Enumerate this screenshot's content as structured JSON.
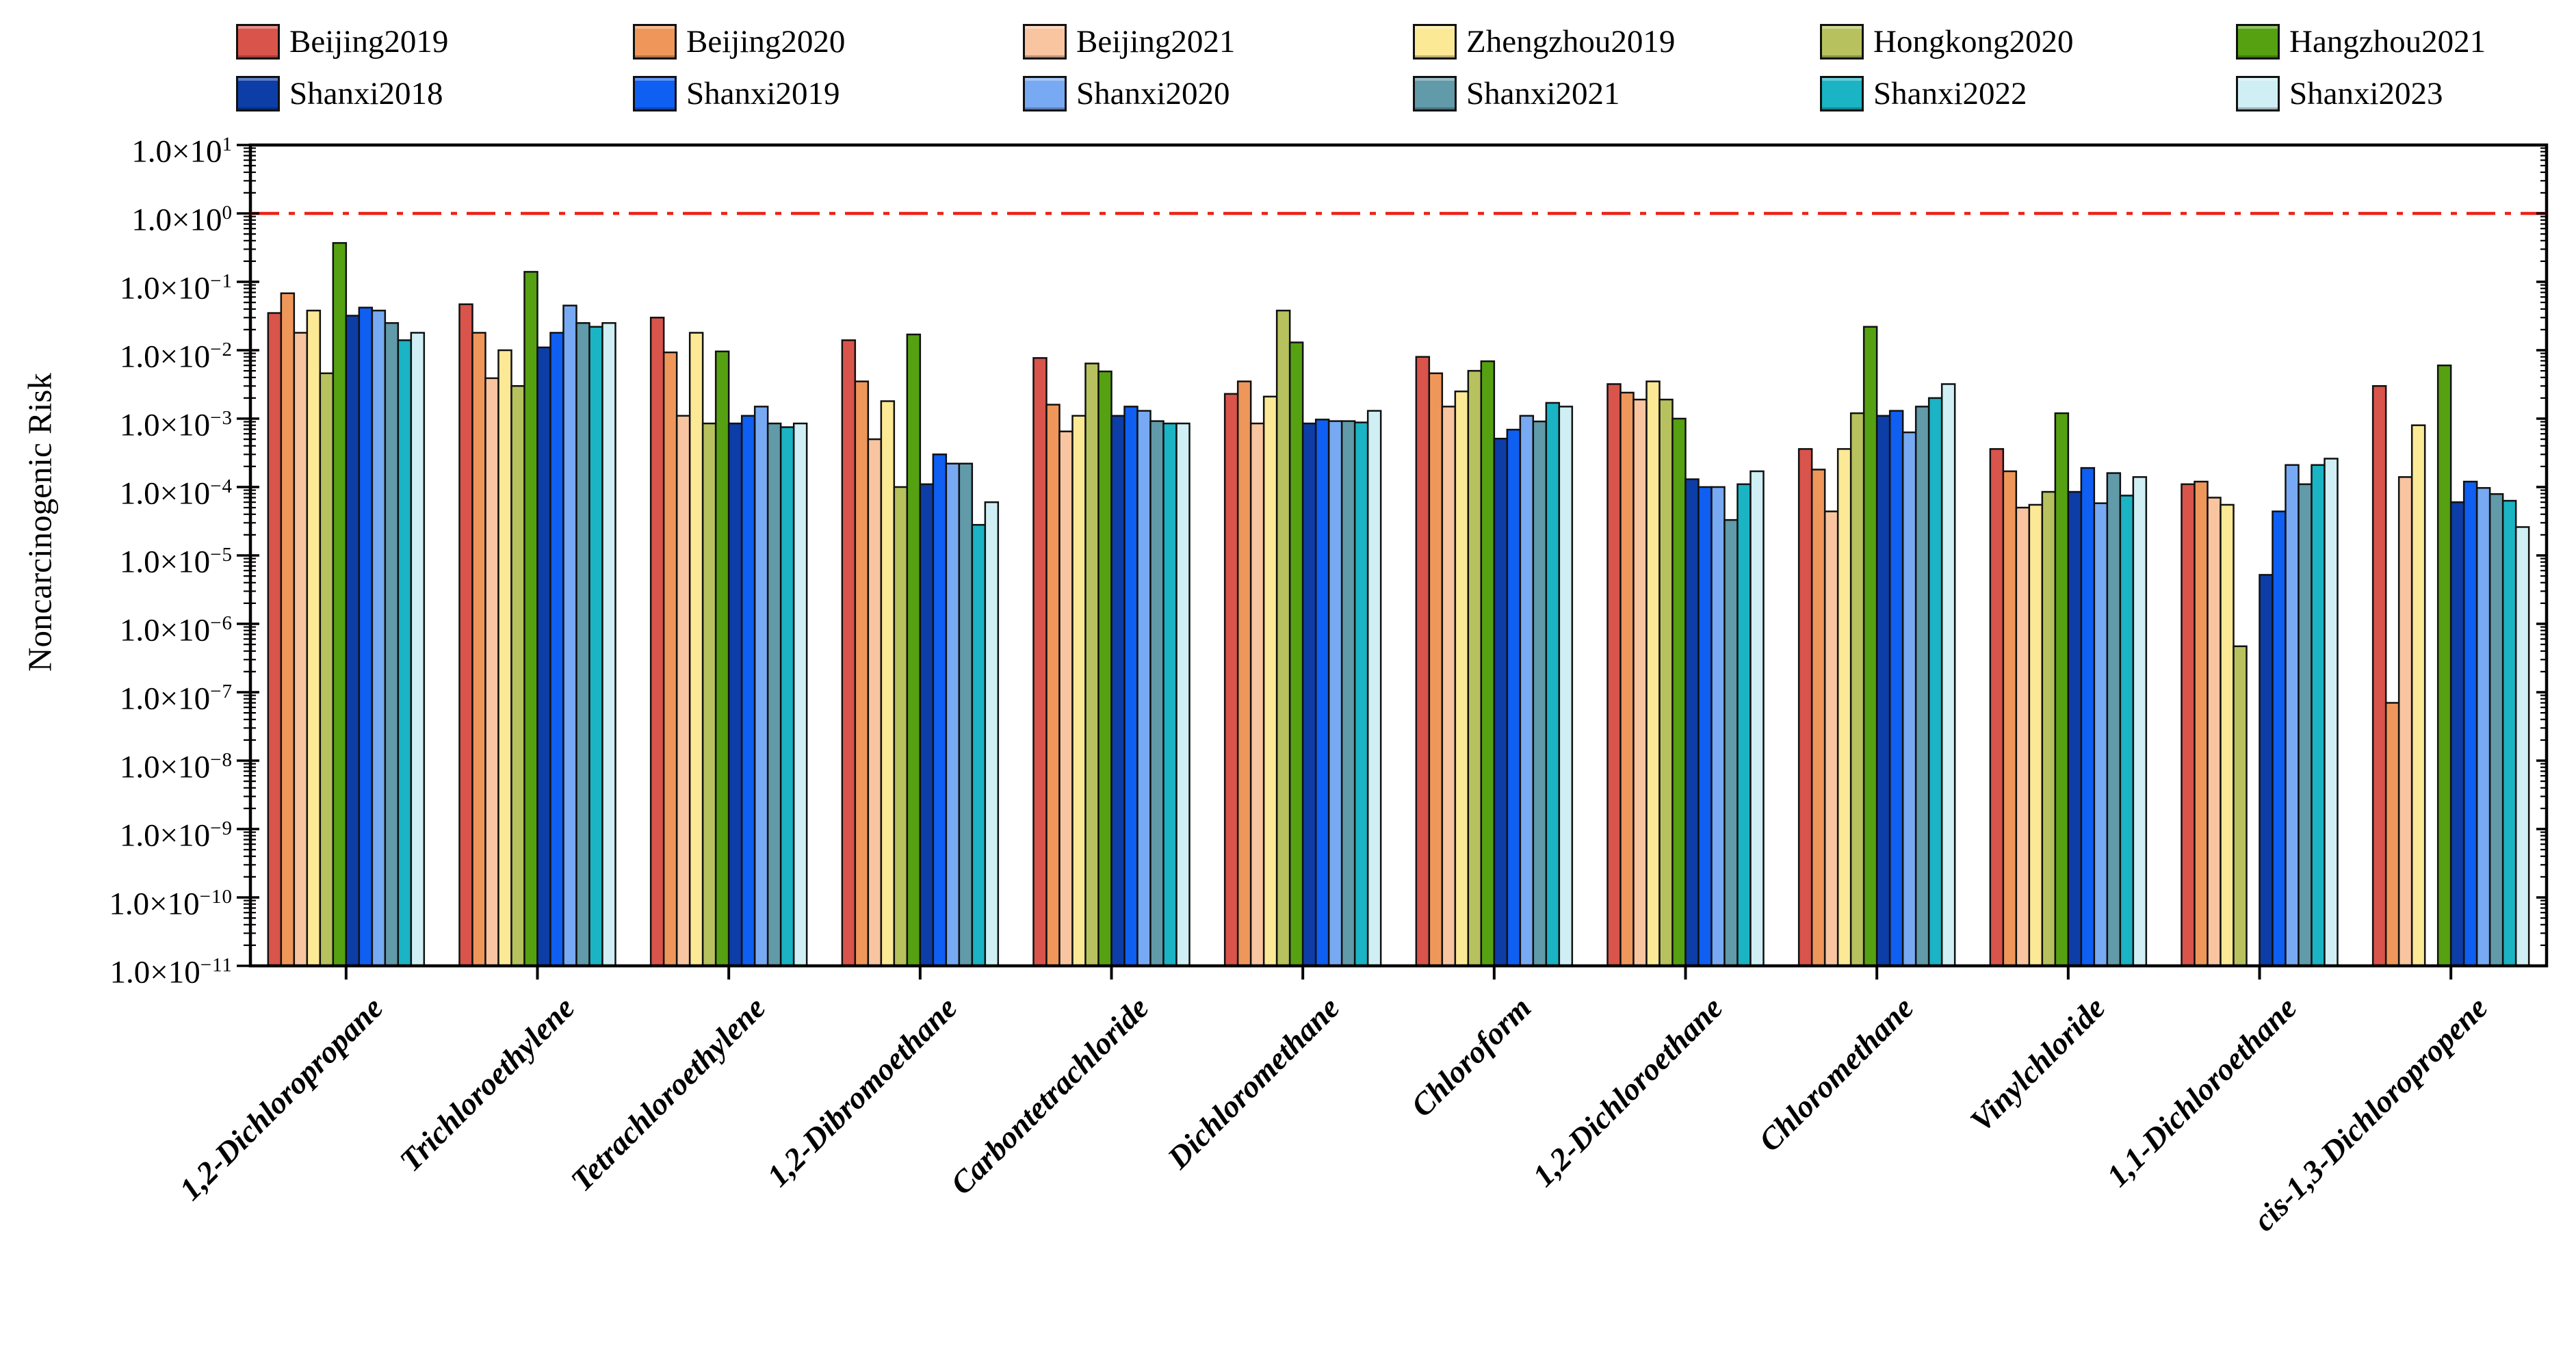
{
  "chart_data": {
    "type": "bar",
    "y_scale": "log",
    "ylim": [
      1e-11,
      10
    ],
    "title": "",
    "xlabel": "",
    "ylabel": "Noncarcinogenic Risk",
    "grid": false,
    "legend_position": "top",
    "reference_line": {
      "value": 1.0,
      "color": "#ee2217",
      "style": "dash-dot"
    },
    "y_tick": {
      "mantissa": "1.0×10",
      "exponents": [
        "1",
        "0",
        "−1",
        "−2",
        "−3",
        "−4",
        "−5",
        "−6",
        "−7",
        "−8",
        "−9",
        "−10",
        "−11"
      ]
    },
    "categories": [
      "1,2-Dichloropropane",
      "Trichloroethylene",
      "Tetrachloroethylene",
      "1,2-Dibromoethane",
      "Carbontetrachloride",
      "Dichloromethane",
      "Chloroform",
      "1,2-Dichloroethane",
      "Chloromethane",
      "Vinylchloride",
      "1,1-Dichloroethane",
      "cis-1,3-Dichloropropene"
    ],
    "series": [
      {
        "name": "Beijing2019",
        "color": "#d9544b",
        "values": [
          0.035,
          0.047,
          0.03,
          0.014,
          0.0077,
          0.0023,
          0.008,
          0.0032,
          0.00036,
          0.00036,
          0.00011,
          0.003
        ]
      },
      {
        "name": "Beijing2020",
        "color": "#ef975b",
        "values": [
          0.068,
          0.018,
          0.0093,
          0.0035,
          0.0016,
          0.0035,
          0.0046,
          0.0024,
          0.00018,
          0.00017,
          0.00012,
          7e-08
        ]
      },
      {
        "name": "Beijing2021",
        "color": "#f8c5a0",
        "values": [
          0.018,
          0.0039,
          0.0011,
          0.0005,
          0.00065,
          0.00085,
          0.0015,
          0.0019,
          4.4e-05,
          5e-05,
          7e-05,
          0.00014
        ]
      },
      {
        "name": "Zhengzhou2019",
        "color": "#fbe996",
        "values": [
          0.038,
          0.01,
          0.018,
          0.0018,
          0.0011,
          0.0021,
          0.0025,
          0.0035,
          0.00036,
          5.5e-05,
          5.5e-05,
          0.0008
        ]
      },
      {
        "name": "Hongkong2020",
        "color": "#b7c25e",
        "values": [
          0.0046,
          0.003,
          0.00085,
          0.0001,
          0.0064,
          0.038,
          0.005,
          0.0019,
          0.0012,
          8.5e-05,
          4.7e-07,
          null
        ]
      },
      {
        "name": "Hangzhou2021",
        "color": "#55a112",
        "values": [
          0.37,
          0.14,
          0.0096,
          0.017,
          0.0049,
          0.013,
          0.0069,
          0.001,
          0.022,
          0.0012,
          null,
          0.006
        ]
      },
      {
        "name": "Shanxi2018",
        "color": "#0d3da6",
        "values": [
          0.032,
          0.011,
          0.00085,
          0.00011,
          0.0011,
          0.00085,
          0.00051,
          0.00013,
          0.0011,
          8.5e-05,
          5.2e-06,
          6e-05
        ]
      },
      {
        "name": "Shanxi2019",
        "color": "#0e5ff2",
        "values": [
          0.042,
          0.018,
          0.0011,
          0.0003,
          0.0015,
          0.00097,
          0.00069,
          0.0001,
          0.0013,
          0.00019,
          4.4e-05,
          0.00012
        ]
      },
      {
        "name": "Shanxi2020",
        "color": "#77aaf2",
        "values": [
          0.038,
          0.045,
          0.0015,
          0.00022,
          0.0013,
          0.00092,
          0.0011,
          0.0001,
          0.00063,
          5.8e-05,
          0.00021,
          9.7e-05
        ]
      },
      {
        "name": "Shanxi2021",
        "color": "#619aa8",
        "values": [
          0.025,
          0.025,
          0.00085,
          0.00022,
          0.00092,
          0.00092,
          0.00091,
          3.3e-05,
          0.0015,
          0.00016,
          0.00011,
          7.9e-05
        ]
      },
      {
        "name": "Shanxi2022",
        "color": "#1ab4c4",
        "values": [
          0.014,
          0.022,
          0.00075,
          2.8e-05,
          0.00085,
          0.00088,
          0.0017,
          0.00011,
          0.002,
          7.5e-05,
          0.00021,
          6.3e-05
        ]
      },
      {
        "name": "Shanxi2023",
        "color": "#cfeff4",
        "values": [
          0.018,
          0.025,
          0.00085,
          6e-05,
          0.00085,
          0.0013,
          0.0015,
          0.00017,
          0.0032,
          0.00014,
          0.00026,
          2.6e-05
        ]
      }
    ]
  }
}
